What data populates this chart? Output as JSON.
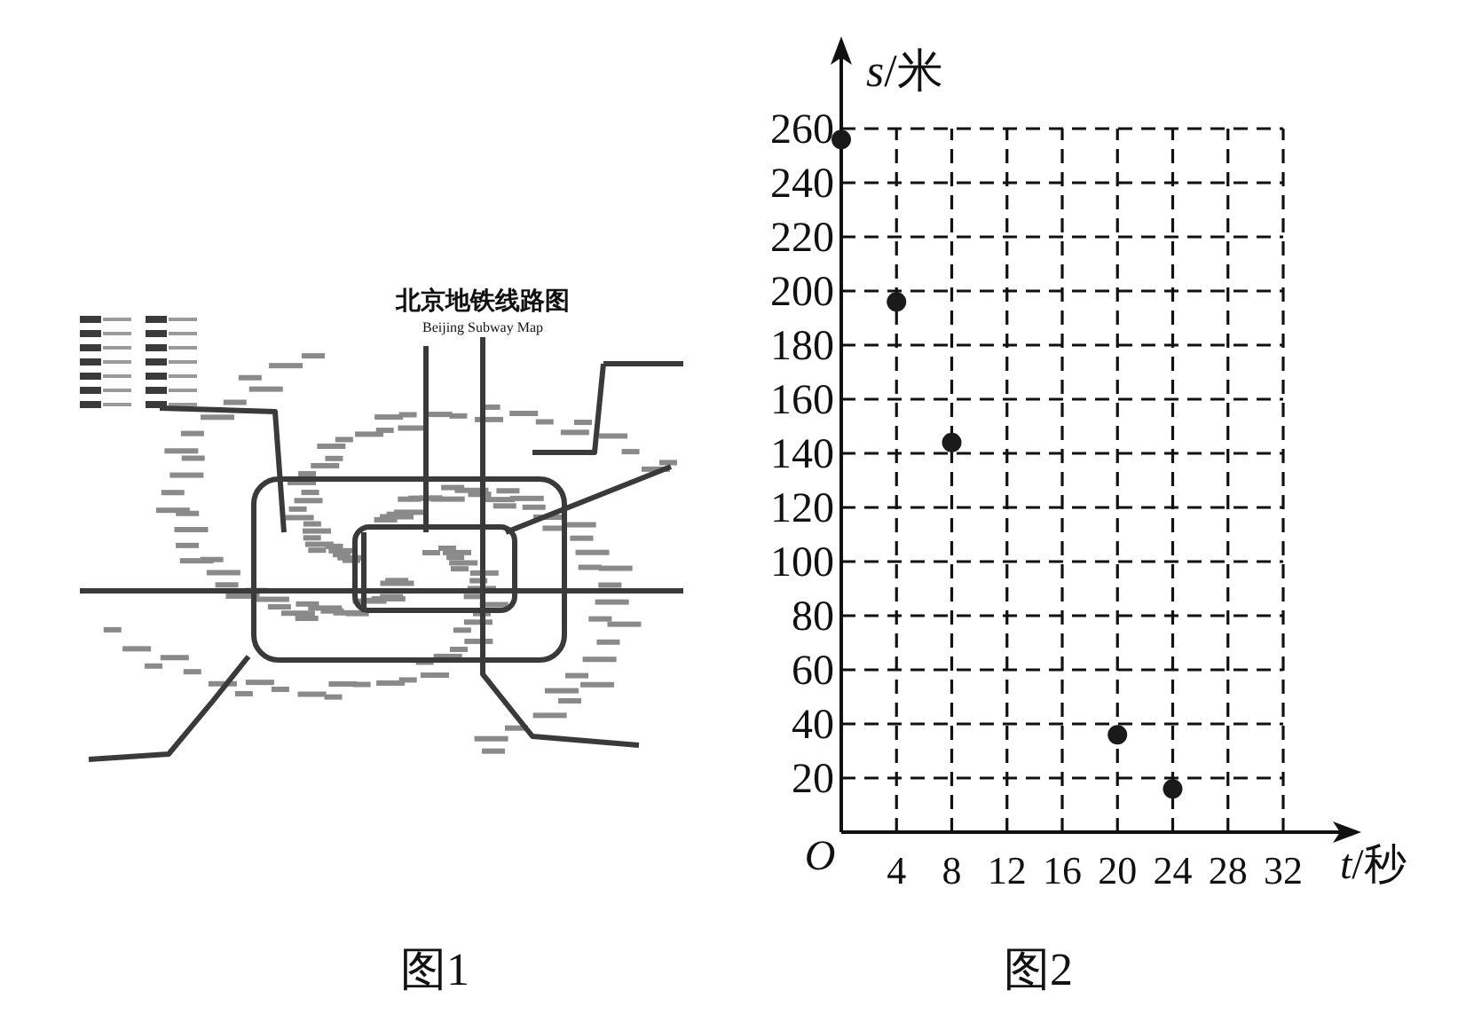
{
  "chart_data": {
    "type": "scatter",
    "x": [
      0,
      4,
      8,
      20,
      24
    ],
    "values": [
      256,
      196,
      144,
      36,
      16
    ],
    "color": "#1a1a1a",
    "marker": "circle",
    "xlabel": "t/秒",
    "ylabel": "s/米",
    "xlim": [
      0,
      32
    ],
    "ylim": [
      0,
      260
    ],
    "xticks": [
      4,
      8,
      12,
      16,
      20,
      24,
      28,
      32
    ],
    "yticks": [
      20,
      40,
      60,
      80,
      100,
      120,
      140,
      160,
      180,
      200,
      220,
      240,
      260
    ],
    "grid": true,
    "annotations": [
      "O",
      "北京地铁线路图",
      "Beijing Subway Map",
      "图1",
      "图2"
    ]
  }
}
